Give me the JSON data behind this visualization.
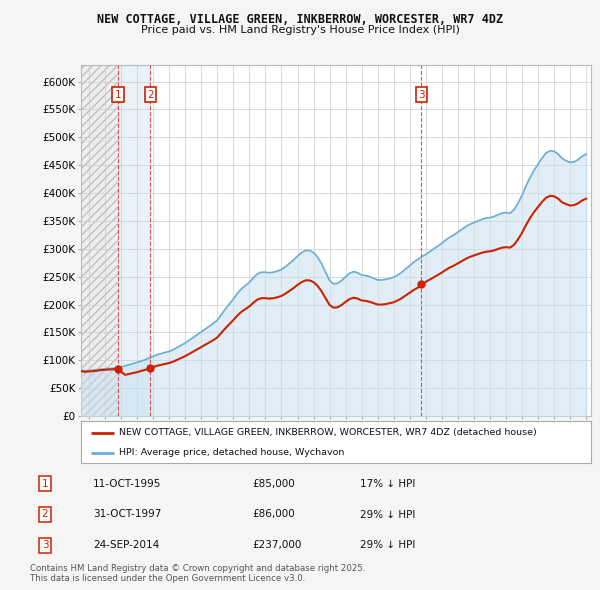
{
  "title": "NEW COTTAGE, VILLAGE GREEN, INKBERROW, WORCESTER, WR7 4DZ",
  "subtitle": "Price paid vs. HM Land Registry's House Price Index (HPI)",
  "ylabel_ticks": [
    "£0",
    "£50K",
    "£100K",
    "£150K",
    "£200K",
    "£250K",
    "£300K",
    "£350K",
    "£400K",
    "£450K",
    "£500K",
    "£550K",
    "£600K"
  ],
  "ylim": [
    0,
    630000
  ],
  "xlim_start": 1993.5,
  "xlim_end": 2025.3,
  "hpi_color": "#6aaed6",
  "hpi_fill_color": "#c6dff0",
  "price_color": "#cc2200",
  "sale_marker_color": "#cc2200",
  "vline_color": "#dd4444",
  "background_color": "#f5f5f5",
  "plot_bg_color": "#ffffff",
  "grid_color": "#cccccc",
  "hatch_color": "#d8d8d8",
  "sales": [
    {
      "label": "1",
      "date_str": "11-OCT-1995",
      "year": 1995.79,
      "price": 85000
    },
    {
      "label": "2",
      "date_str": "31-OCT-1997",
      "year": 1997.83,
      "price": 86000
    },
    {
      "label": "3",
      "date_str": "24-SEP-2014",
      "year": 2014.73,
      "price": 237000
    }
  ],
  "sale_info": [
    {
      "num": "1",
      "date": "11-OCT-1995",
      "price": "£85,000",
      "hpi_note": "17% ↓ HPI"
    },
    {
      "num": "2",
      "date": "31-OCT-1997",
      "price": "£86,000",
      "hpi_note": "29% ↓ HPI"
    },
    {
      "num": "3",
      "date": "24-SEP-2014",
      "price": "£237,000",
      "hpi_note": "29% ↓ HPI"
    }
  ],
  "legend_entries": [
    "NEW COTTAGE, VILLAGE GREEN, INKBERROW, WORCESTER, WR7 4DZ (detached house)",
    "HPI: Average price, detached house, Wychavon"
  ],
  "footer": "Contains HM Land Registry data © Crown copyright and database right 2025.\nThis data is licensed under the Open Government Licence v3.0."
}
